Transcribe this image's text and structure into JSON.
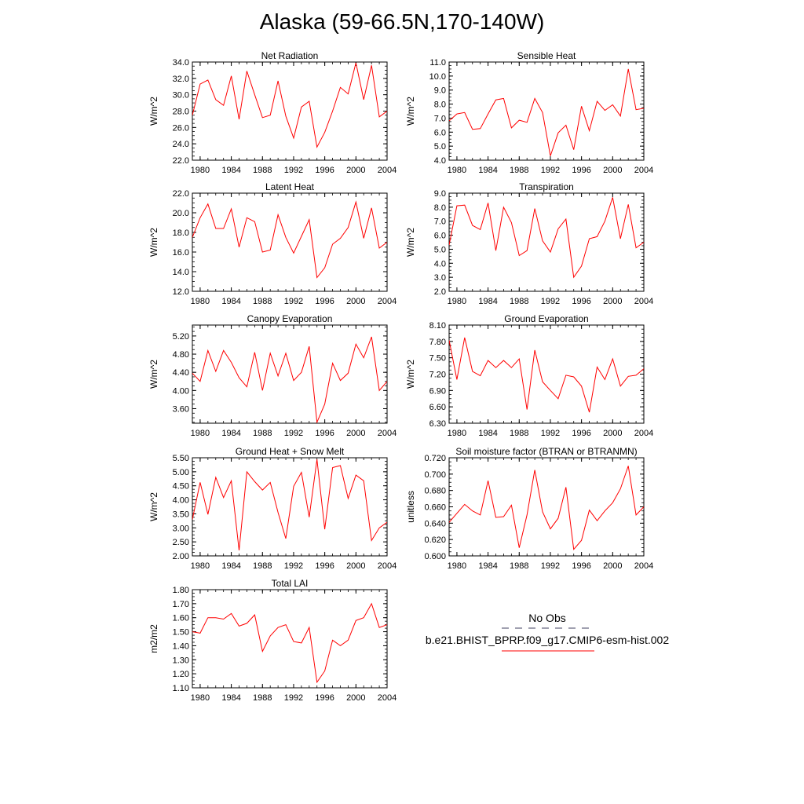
{
  "page_title": "Alaska (59-66.5N,170-140W)",
  "legend": {
    "obs_label": "No Obs",
    "obs_color": "#404060",
    "model_label": "b.e21.BHIST_BPRP.f09_g17.CMIP6-esm-hist.002",
    "model_color": "#ff0000"
  },
  "line_color": "#ff0000",
  "chart_data": [
    {
      "type": "line",
      "title": "Net Radiation",
      "ylabel": "W/m^2",
      "xlabel": "",
      "xlim": [
        1979,
        2004
      ],
      "ylim": [
        22.0,
        34.0
      ],
      "xticks": [
        "1980",
        "1984",
        "1988",
        "1992",
        "1996",
        "2000",
        "2004"
      ],
      "yticks": [
        "22.0",
        "24.0",
        "26.0",
        "28.0",
        "30.0",
        "32.0",
        "34.0"
      ],
      "x": [
        1979,
        1980,
        1981,
        1982,
        1983,
        1984,
        1985,
        1986,
        1987,
        1988,
        1989,
        1990,
        1991,
        1992,
        1993,
        1994,
        1995,
        1996,
        1997,
        1998,
        1999,
        2000,
        2001,
        2002,
        2003,
        2004
      ],
      "series": [
        {
          "values": [
            27.5,
            31.3,
            31.8,
            29.4,
            28.7,
            32.3,
            27.0,
            32.9,
            30.0,
            27.2,
            27.5,
            31.7,
            27.4,
            24.7,
            28.5,
            29.2,
            23.6,
            25.4,
            28.0,
            30.9,
            30.1,
            33.9,
            29.4,
            33.6,
            27.3,
            28.0
          ]
        }
      ]
    },
    {
      "type": "line",
      "title": "Sensible Heat",
      "ylabel": "W/m^2",
      "xlabel": "",
      "xlim": [
        1979,
        2004
      ],
      "ylim": [
        4.0,
        11.0
      ],
      "xticks": [
        "1980",
        "1984",
        "1988",
        "1992",
        "1996",
        "2000",
        "2004"
      ],
      "yticks": [
        "4.0",
        "5.0",
        "6.0",
        "7.0",
        "8.0",
        "9.0",
        "10.0",
        "11.0"
      ],
      "x": [
        1979,
        1980,
        1981,
        1982,
        1983,
        1984,
        1985,
        1986,
        1987,
        1988,
        1989,
        1990,
        1991,
        1992,
        1993,
        1994,
        1995,
        1996,
        1997,
        1998,
        1999,
        2000,
        2001,
        2002,
        2003,
        2004
      ],
      "series": [
        {
          "values": [
            6.8,
            7.3,
            7.4,
            6.2,
            6.25,
            7.3,
            8.3,
            8.4,
            6.3,
            6.85,
            6.7,
            8.4,
            7.4,
            4.3,
            5.95,
            6.5,
            4.75,
            7.85,
            6.1,
            8.2,
            7.55,
            7.95,
            7.15,
            10.5,
            7.6,
            7.7
          ]
        }
      ]
    },
    {
      "type": "line",
      "title": "Latent Heat",
      "ylabel": "W/m^2",
      "xlabel": "",
      "xlim": [
        1979,
        2004
      ],
      "ylim": [
        12.0,
        22.0
      ],
      "xticks": [
        "1980",
        "1984",
        "1988",
        "1992",
        "1996",
        "2000",
        "2004"
      ],
      "yticks": [
        "12.0",
        "14.0",
        "16.0",
        "18.0",
        "20.0",
        "22.0"
      ],
      "x": [
        1979,
        1980,
        1981,
        1982,
        1983,
        1984,
        1985,
        1986,
        1987,
        1988,
        1989,
        1990,
        1991,
        1992,
        1993,
        1994,
        1995,
        1996,
        1997,
        1998,
        1999,
        2000,
        2001,
        2002,
        2003,
        2004
      ],
      "series": [
        {
          "values": [
            17.5,
            19.5,
            20.9,
            18.4,
            18.4,
            20.4,
            16.5,
            19.5,
            19.1,
            16.0,
            16.2,
            19.8,
            17.5,
            15.9,
            17.6,
            19.3,
            13.4,
            14.4,
            16.8,
            17.4,
            18.5,
            21.1,
            17.4,
            20.5,
            16.4,
            17.0
          ]
        }
      ]
    },
    {
      "type": "line",
      "title": "Transpiration",
      "ylabel": "W/m^2",
      "xlabel": "",
      "xlim": [
        1979,
        2004
      ],
      "ylim": [
        2.0,
        9.0
      ],
      "xticks": [
        "1980",
        "1984",
        "1988",
        "1992",
        "1996",
        "2000",
        "2004"
      ],
      "yticks": [
        "2.0",
        "3.0",
        "4.0",
        "5.0",
        "6.0",
        "7.0",
        "8.0",
        "9.0"
      ],
      "x": [
        1979,
        1980,
        1981,
        1982,
        1983,
        1984,
        1985,
        1986,
        1987,
        1988,
        1989,
        1990,
        1991,
        1992,
        1993,
        1994,
        1995,
        1996,
        1997,
        1998,
        1999,
        2000,
        2001,
        2002,
        2003,
        2004
      ],
      "series": [
        {
          "values": [
            5.3,
            8.1,
            8.15,
            6.7,
            6.4,
            8.3,
            4.9,
            8.0,
            6.9,
            4.55,
            4.9,
            7.9,
            5.6,
            4.8,
            6.45,
            7.15,
            3.0,
            3.8,
            5.75,
            5.9,
            7.0,
            8.7,
            5.75,
            8.2,
            5.1,
            5.5
          ]
        }
      ]
    },
    {
      "type": "line",
      "title": "Canopy Evaporation",
      "ylabel": "W/m^2",
      "xlabel": "",
      "xlim": [
        1979,
        2004
      ],
      "ylim": [
        3.28,
        5.44
      ],
      "xticks": [
        "1980",
        "1984",
        "1988",
        "1992",
        "1996",
        "2000",
        "2004"
      ],
      "yticks": [
        "3.60",
        "4.00",
        "4.40",
        "4.80",
        "5.20"
      ],
      "ytick_values": [
        3.6,
        4.0,
        4.4,
        4.8,
        5.2
      ],
      "x": [
        1979,
        1980,
        1981,
        1982,
        1983,
        1984,
        1985,
        1986,
        1987,
        1988,
        1989,
        1990,
        1991,
        1992,
        1993,
        1994,
        1995,
        1996,
        1997,
        1998,
        1999,
        2000,
        2001,
        2002,
        2003,
        2004
      ],
      "series": [
        {
          "values": [
            4.38,
            4.2,
            4.88,
            4.42,
            4.88,
            4.62,
            4.28,
            4.08,
            4.84,
            4.0,
            4.82,
            4.32,
            4.82,
            4.22,
            4.4,
            4.97,
            3.3,
            3.7,
            4.6,
            4.22,
            4.38,
            5.02,
            4.72,
            5.18,
            4.0,
            4.2
          ]
        }
      ]
    },
    {
      "type": "line",
      "title": "Ground Evaporation",
      "ylabel": "W/m^2",
      "xlabel": "",
      "xlim": [
        1979,
        2004
      ],
      "ylim": [
        6.3,
        8.1
      ],
      "xticks": [
        "1980",
        "1984",
        "1988",
        "1992",
        "1996",
        "2000",
        "2004"
      ],
      "yticks": [
        "6.30",
        "6.60",
        "6.90",
        "7.20",
        "7.50",
        "7.80",
        "8.10"
      ],
      "x": [
        1979,
        1980,
        1981,
        1982,
        1983,
        1984,
        1985,
        1986,
        1987,
        1988,
        1989,
        1990,
        1991,
        1992,
        1993,
        1994,
        1995,
        1996,
        1997,
        1998,
        1999,
        2000,
        2001,
        2002,
        2003,
        2004
      ],
      "series": [
        {
          "values": [
            7.82,
            7.1,
            7.87,
            7.25,
            7.17,
            7.45,
            7.32,
            7.45,
            7.32,
            7.48,
            6.55,
            7.64,
            7.06,
            6.9,
            6.75,
            7.18,
            7.15,
            6.98,
            6.5,
            7.33,
            7.1,
            7.48,
            6.98,
            7.16,
            7.18,
            7.3
          ]
        }
      ]
    },
    {
      "type": "line",
      "title": "Ground Heat + Snow Melt",
      "ylabel": "W/m^2",
      "xlabel": "",
      "xlim": [
        1979,
        2004
      ],
      "ylim": [
        2.0,
        5.5
      ],
      "xticks": [
        "1980",
        "1984",
        "1988",
        "1992",
        "1996",
        "2000",
        "2004"
      ],
      "yticks": [
        "2.00",
        "2.50",
        "3.00",
        "3.50",
        "4.00",
        "4.50",
        "5.00",
        "5.50"
      ],
      "x": [
        1979,
        1980,
        1981,
        1982,
        1983,
        1984,
        1985,
        1986,
        1987,
        1988,
        1989,
        1990,
        1991,
        1992,
        1993,
        1994,
        1995,
        1996,
        1997,
        1998,
        1999,
        2000,
        2001,
        2002,
        2003,
        2004
      ],
      "series": [
        {
          "values": [
            3.3,
            4.62,
            3.48,
            4.8,
            4.08,
            4.68,
            2.2,
            5.0,
            4.65,
            4.35,
            4.62,
            3.55,
            2.62,
            4.48,
            4.98,
            3.38,
            5.44,
            2.95,
            5.15,
            5.22,
            4.05,
            4.88,
            4.68,
            2.55,
            3.0,
            3.2
          ]
        }
      ]
    },
    {
      "type": "line",
      "title": "Soil moisture factor (BTRAN or BTRANMN)",
      "ylabel": "unitless",
      "xlabel": "",
      "xlim": [
        1979,
        2004
      ],
      "ylim": [
        0.6,
        0.72
      ],
      "xticks": [
        "1980",
        "1984",
        "1988",
        "1992",
        "1996",
        "2000",
        "2004"
      ],
      "yticks": [
        "0.600",
        "0.620",
        "0.640",
        "0.660",
        "0.680",
        "0.700",
        "0.720"
      ],
      "x": [
        1979,
        1980,
        1981,
        1982,
        1983,
        1984,
        1985,
        1986,
        1987,
        1988,
        1989,
        1990,
        1991,
        1992,
        1993,
        1994,
        1995,
        1996,
        1997,
        1998,
        1999,
        2000,
        2001,
        2002,
        2003,
        2004
      ],
      "series": [
        {
          "values": [
            0.641,
            0.652,
            0.663,
            0.655,
            0.65,
            0.692,
            0.647,
            0.648,
            0.662,
            0.61,
            0.65,
            0.705,
            0.654,
            0.633,
            0.646,
            0.684,
            0.608,
            0.619,
            0.656,
            0.643,
            0.655,
            0.665,
            0.682,
            0.71,
            0.65,
            0.66
          ]
        }
      ]
    },
    {
      "type": "line",
      "title": "Total LAI",
      "ylabel": "m2/m2",
      "xlabel": "",
      "xlim": [
        1979,
        2004
      ],
      "ylim": [
        1.1,
        1.8
      ],
      "xticks": [
        "1980",
        "1984",
        "1988",
        "1992",
        "1996",
        "2000",
        "2004"
      ],
      "yticks": [
        "1.10",
        "1.20",
        "1.30",
        "1.40",
        "1.50",
        "1.60",
        "1.70",
        "1.80"
      ],
      "x": [
        1979,
        1980,
        1981,
        1982,
        1983,
        1984,
        1985,
        1986,
        1987,
        1988,
        1989,
        1990,
        1991,
        1992,
        1993,
        1994,
        1995,
        1996,
        1997,
        1998,
        1999,
        2000,
        2001,
        2002,
        2003,
        2004
      ],
      "series": [
        {
          "values": [
            1.5,
            1.49,
            1.6,
            1.6,
            1.59,
            1.63,
            1.54,
            1.56,
            1.62,
            1.36,
            1.47,
            1.53,
            1.55,
            1.43,
            1.42,
            1.53,
            1.14,
            1.22,
            1.44,
            1.4,
            1.44,
            1.58,
            1.6,
            1.7,
            1.53,
            1.55
          ]
        }
      ]
    }
  ]
}
